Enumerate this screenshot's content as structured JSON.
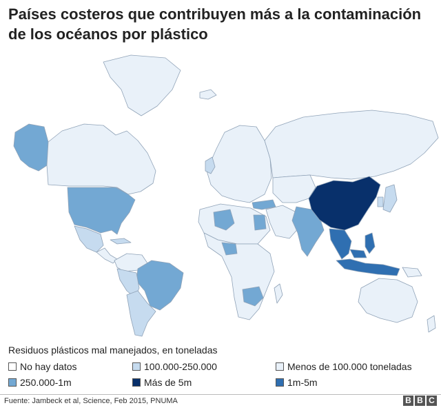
{
  "title": "Países costeros que contribuyen más a la contaminación de los océanos por plástico",
  "legend": {
    "title": "Residuos plásticos mal manejados, en toneladas",
    "items": [
      {
        "label": "No hay datos",
        "color": "#ffffff"
      },
      {
        "label": "100.000-250.000",
        "color": "#c6dbef"
      },
      {
        "label": "Menos de 100.000 toneladas",
        "color": "#e9f1f9"
      },
      {
        "label": "250.000-1m",
        "color": "#73a8d3"
      },
      {
        "label": "Más de 5m",
        "color": "#08306b"
      },
      {
        "label": "1m-5m",
        "color": "#2f6fb1"
      }
    ]
  },
  "map_categories": {
    "china": "Más de 5m",
    "southeast_asia": "1m-5m",
    "india": "250.000-1m",
    "usa": "250.000-1m",
    "brazil": "250.000-1m",
    "alaska": "250.000-1m",
    "south_africa": "250.000-1m",
    "russia": "Menos de 100.000 toneladas",
    "canada": "Menos de 100.000 toneladas",
    "australia": "Menos de 100.000 toneladas"
  },
  "source": "Fuente: Jambeck et al, Science, Feb 2015, PNUMA",
  "logo": [
    "B",
    "B",
    "C"
  ]
}
